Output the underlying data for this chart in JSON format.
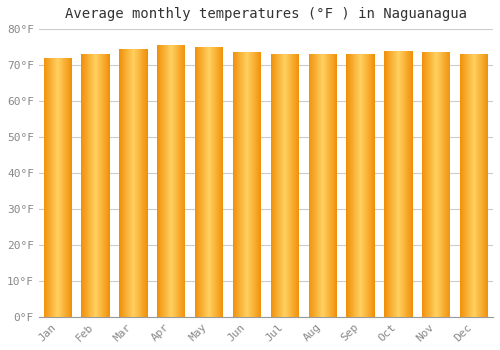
{
  "months": [
    "Jan",
    "Feb",
    "Mar",
    "Apr",
    "May",
    "Jun",
    "Jul",
    "Aug",
    "Sep",
    "Oct",
    "Nov",
    "Dec"
  ],
  "values": [
    72,
    73,
    74.5,
    75.5,
    75,
    73.5,
    73,
    73,
    73,
    74,
    73.5,
    73
  ],
  "title": "Average monthly temperatures (°F ) in Naguanagua",
  "ylim": [
    0,
    80
  ],
  "yticks": [
    0,
    10,
    20,
    30,
    40,
    50,
    60,
    70,
    80
  ],
  "ytick_labels": [
    "0°F",
    "10°F",
    "20°F",
    "30°F",
    "40°F",
    "50°F",
    "60°F",
    "70°F",
    "80°F"
  ],
  "background_color": "#FFFFFF",
  "grid_color": "#CCCCCC",
  "title_fontsize": 10,
  "tick_fontsize": 8,
  "bar_width": 0.75,
  "bar_color_center": "#FFD060",
  "bar_color_edge": "#F0900A",
  "bar_gap_color": "#FFFFFF"
}
